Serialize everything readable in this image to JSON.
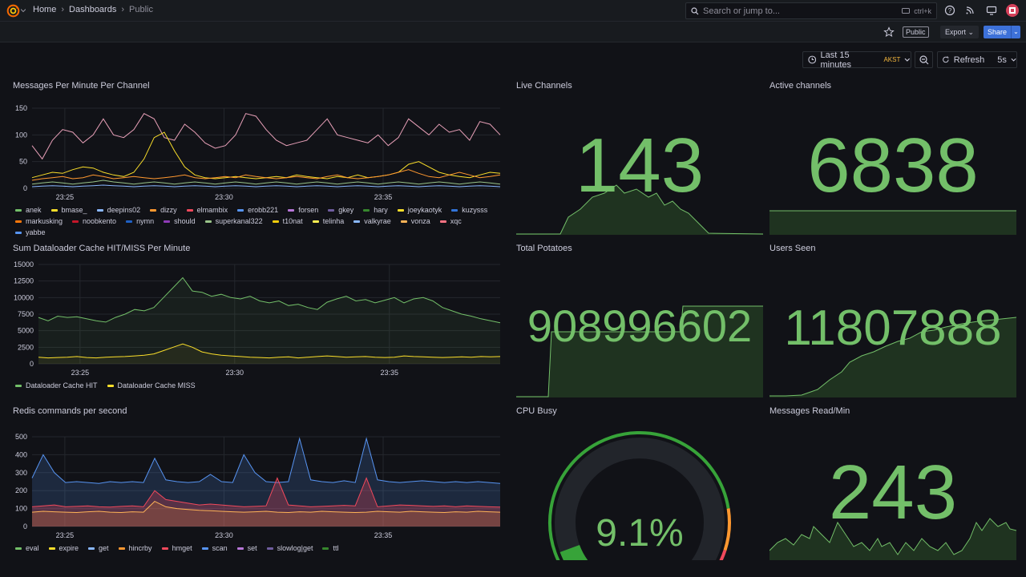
{
  "topbar": {
    "breadcrumbs": [
      "Home",
      "Dashboards",
      "Public"
    ],
    "search_placeholder": "Search or jump to...",
    "search_shortcut": "ctrl+k"
  },
  "toolbar": {
    "public_badge": "Public",
    "export_label": "Export",
    "share_label": "Share",
    "time_range": "Last 15 minutes",
    "timezone": "AKST",
    "refresh_label": "Refresh",
    "refresh_interval": "5s"
  },
  "colors": {
    "green": "#73bf69",
    "yellow": "#fade2a",
    "blue": "#5794f2",
    "orange": "#ff9830",
    "red": "#f2495c",
    "purple": "#b877d9",
    "pink": "#e8a0b8"
  },
  "panels": {
    "messages": {
      "title": "Messages Per Minute Per Channel",
      "legend": [
        {
          "name": "anek",
          "color": "#73bf69"
        },
        {
          "name": "bmase_",
          "color": "#fade2a"
        },
        {
          "name": "deepins02",
          "color": "#8ab8ff"
        },
        {
          "name": "dizzy",
          "color": "#ff9830"
        },
        {
          "name": "elmambix",
          "color": "#f2495c"
        },
        {
          "name": "erobb221",
          "color": "#5794f2"
        },
        {
          "name": "forsen",
          "color": "#b877d9"
        },
        {
          "name": "gkey",
          "color": "#705da0"
        },
        {
          "name": "hary",
          "color": "#37872d"
        },
        {
          "name": "joeykaotyk",
          "color": "#fade2a"
        },
        {
          "name": "kuzysss",
          "color": "#3274d9"
        },
        {
          "name": "markusking",
          "color": "#ff780a"
        },
        {
          "name": "noobkento",
          "color": "#c4162a"
        },
        {
          "name": "nymn",
          "color": "#1f60c4"
        },
        {
          "name": "should",
          "color": "#8f3bb8"
        },
        {
          "name": "superkanal322",
          "color": "#9ac48a"
        },
        {
          "name": "t10nat",
          "color": "#f2cc0c"
        },
        {
          "name": "telinha",
          "color": "#ffee52"
        },
        {
          "name": "valkyrae",
          "color": "#8ab8ff"
        },
        {
          "name": "vonza",
          "color": "#ffb357"
        },
        {
          "name": "xqc",
          "color": "#ff7383"
        },
        {
          "name": "yabbe",
          "color": "#5794f2"
        }
      ]
    },
    "cache": {
      "title": "Sum Dataloader Cache HIT/MISS Per Minute",
      "legend": [
        {
          "name": "Dataloader Cache HIT",
          "color": "#73bf69"
        },
        {
          "name": "Dataloader Cache MISS",
          "color": "#fade2a"
        }
      ]
    },
    "redis": {
      "title": "Redis commands per second",
      "legend": [
        {
          "name": "eval",
          "color": "#73bf69"
        },
        {
          "name": "expire",
          "color": "#fade2a"
        },
        {
          "name": "get",
          "color": "#8ab8ff"
        },
        {
          "name": "hincrby",
          "color": "#ff9830"
        },
        {
          "name": "hmget",
          "color": "#f2495c"
        },
        {
          "name": "scan",
          "color": "#5794f2"
        },
        {
          "name": "set",
          "color": "#b877d9"
        },
        {
          "name": "slowlog|get",
          "color": "#705da0"
        },
        {
          "name": "ttl",
          "color": "#37872d"
        }
      ]
    },
    "live_channels": {
      "title": "Live Channels",
      "value": "143"
    },
    "active_channels": {
      "title": "Active channels",
      "value": "6838"
    },
    "total_potatoes": {
      "title": "Total Potatoes",
      "value": "908996602"
    },
    "users_seen": {
      "title": "Users Seen",
      "value": "11807888"
    },
    "cpu_busy": {
      "title": "CPU Busy",
      "value": "9.1%",
      "percent": 9.1
    },
    "messages_read": {
      "title": "Messages Read/Min",
      "value": "243"
    }
  },
  "chart_data": [
    {
      "type": "line",
      "title": "Messages Per Minute Per Channel",
      "ylim": [
        0,
        150
      ],
      "yticks": [
        0,
        50,
        100,
        150
      ],
      "xticks": [
        "23:25",
        "23:30",
        "23:35"
      ],
      "series": [
        {
          "name": "xqc",
          "values": [
            80,
            55,
            90,
            110,
            105,
            85,
            100,
            130,
            100,
            95,
            110,
            140,
            130,
            95,
            90,
            120,
            105,
            85,
            75,
            80,
            100,
            140,
            135,
            110,
            90,
            80,
            85,
            90,
            110,
            130,
            100,
            95,
            90,
            85,
            100,
            80,
            95,
            130,
            115,
            100,
            120,
            105,
            110,
            90,
            125,
            120,
            100
          ]
        },
        {
          "name": "bmase_",
          "values": [
            20,
            25,
            30,
            28,
            35,
            40,
            38,
            30,
            25,
            22,
            30,
            55,
            95,
            105,
            70,
            40,
            25,
            20,
            18,
            20,
            22,
            20,
            18,
            20,
            22,
            20,
            25,
            22,
            20,
            18,
            22,
            20,
            25,
            20,
            22,
            25,
            30,
            45,
            50,
            40,
            30,
            25,
            22,
            20,
            25,
            30,
            28
          ]
        },
        {
          "name": "dizzy",
          "values": [
            15,
            18,
            20,
            22,
            18,
            20,
            25,
            22,
            18,
            20,
            22,
            20,
            18,
            20,
            22,
            25,
            20,
            18,
            20,
            22,
            20,
            25,
            22,
            20,
            18,
            20,
            22,
            20,
            18,
            22,
            25,
            20,
            18,
            20,
            22,
            25,
            30,
            35,
            28,
            22,
            20,
            25,
            30,
            25,
            20,
            22,
            25
          ]
        },
        {
          "name": "anek",
          "values": [
            8,
            10,
            12,
            10,
            8,
            10,
            12,
            15,
            12,
            10,
            8,
            10,
            12,
            10,
            8,
            10,
            12,
            10,
            8,
            10,
            12,
            10,
            8,
            10,
            12,
            10,
            8,
            10,
            12,
            10,
            8,
            10,
            12,
            10,
            8,
            10,
            12,
            10,
            8,
            10,
            12,
            10,
            8,
            10,
            12,
            10,
            8
          ]
        },
        {
          "name": "deepins02",
          "values": [
            3,
            4,
            5,
            4,
            3,
            4,
            5,
            6,
            5,
            4,
            3,
            4,
            5,
            4,
            3,
            4,
            5,
            4,
            3,
            4,
            5,
            4,
            3,
            4,
            5,
            4,
            3,
            4,
            5,
            4,
            3,
            4,
            5,
            4,
            3,
            4,
            5,
            4,
            3,
            4,
            5,
            4,
            3,
            4,
            5,
            4,
            3
          ]
        }
      ]
    },
    {
      "type": "line",
      "title": "Sum Dataloader Cache HIT/MISS Per Minute",
      "ylim": [
        0,
        15000
      ],
      "yticks": [
        0,
        2500,
        5000,
        7500,
        10000,
        12500,
        15000
      ],
      "xticks": [
        "23:25",
        "23:30",
        "23:35"
      ],
      "series": [
        {
          "name": "Dataloader Cache HIT",
          "values": [
            7000,
            6500,
            7200,
            7000,
            7100,
            6800,
            6500,
            6300,
            7000,
            7500,
            8200,
            8000,
            8500,
            10000,
            11500,
            13000,
            11000,
            10800,
            10200,
            10500,
            10000,
            9800,
            10200,
            9500,
            9200,
            9500,
            8800,
            9000,
            8500,
            8200,
            9300,
            9800,
            10200,
            9500,
            9700,
            9200,
            9600,
            10000,
            9200,
            9800,
            10000,
            9500,
            8500,
            8000,
            7500,
            7200,
            6800,
            6500,
            6200
          ]
        },
        {
          "name": "Dataloader Cache MISS",
          "values": [
            1000,
            900,
            950,
            1000,
            1100,
            950,
            900,
            1000,
            1050,
            1100,
            1200,
            1300,
            1500,
            2000,
            2500,
            3000,
            2500,
            1800,
            1500,
            1300,
            1200,
            1100,
            1000,
            950,
            900,
            1000,
            1050,
            900,
            1000,
            1100,
            1200,
            1100,
            1000,
            1050,
            1100,
            1000,
            950,
            1000,
            1200,
            1100,
            1050,
            1000,
            950,
            1000,
            1050,
            1000,
            1100,
            1050,
            1100
          ]
        }
      ]
    },
    {
      "type": "area",
      "title": "Redis commands per second",
      "ylim": [
        0,
        500
      ],
      "yticks": [
        0,
        100,
        200,
        300,
        400,
        500
      ],
      "xticks": [
        "23:25",
        "23:30",
        "23:35"
      ],
      "series": [
        {
          "name": "scan",
          "values": [
            270,
            400,
            300,
            245,
            250,
            245,
            240,
            250,
            245,
            250,
            245,
            380,
            260,
            250,
            245,
            250,
            290,
            250,
            245,
            400,
            300,
            250,
            245,
            250,
            490,
            260,
            250,
            245,
            255,
            245,
            490,
            260,
            250,
            245,
            250,
            255,
            250,
            245,
            250,
            245,
            250,
            245,
            240
          ]
        },
        {
          "name": "hmget",
          "values": [
            110,
            115,
            120,
            110,
            112,
            115,
            110,
            108,
            112,
            115,
            110,
            200,
            150,
            140,
            130,
            120,
            125,
            120,
            115,
            110,
            112,
            115,
            270,
            120,
            115,
            110,
            112,
            115,
            118,
            115,
            270,
            110,
            115,
            120,
            118,
            115,
            112,
            115,
            110,
            115,
            112,
            110,
            108
          ]
        },
        {
          "name": "get",
          "values": [
            80,
            85,
            82,
            80,
            78,
            82,
            85,
            80,
            78,
            82,
            80,
            140,
            110,
            100,
            95,
            90,
            88,
            85,
            82,
            80,
            82,
            85,
            80,
            78,
            82,
            80,
            85,
            82,
            80,
            78,
            80,
            85,
            82,
            80,
            85,
            82,
            80,
            78,
            82,
            80,
            85,
            82,
            80
          ]
        }
      ]
    }
  ]
}
